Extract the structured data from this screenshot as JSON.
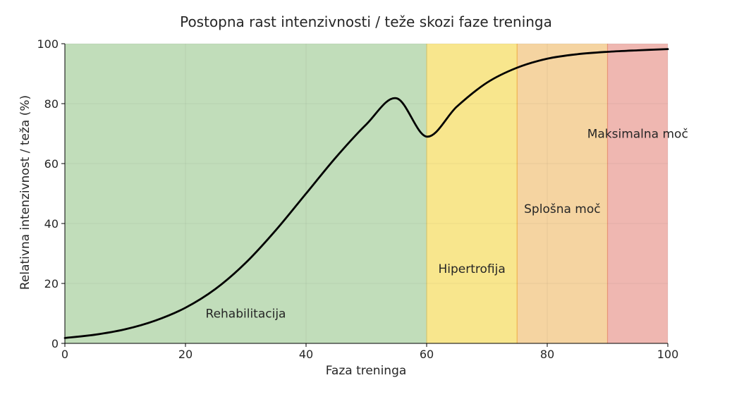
{
  "chart_data": {
    "type": "line",
    "title": "Postopna rast intenzivnosti / teže skozi faze treninga",
    "xlabel": "Faza treninga",
    "ylabel": "Relativna intenzivnost / teža (%)",
    "xlim": [
      0,
      100
    ],
    "ylim": [
      0,
      100
    ],
    "xticks": [
      0,
      20,
      40,
      60,
      80,
      100
    ],
    "yticks": [
      0,
      20,
      40,
      60,
      80,
      100
    ],
    "grid": true,
    "phases": [
      {
        "label": "Rehabilitacija",
        "x_start": 0,
        "x_end": 60,
        "color": "#c1ddba",
        "label_x": 30,
        "label_y": 10
      },
      {
        "label": "Hipertrofija",
        "x_start": 60,
        "x_end": 75,
        "color": "#f8e68d",
        "label_x": 67.5,
        "label_y": 25
      },
      {
        "label": "Splošna moč",
        "x_start": 75,
        "x_end": 90,
        "color": "#f5d4a1",
        "label_x": 82.5,
        "label_y": 45
      },
      {
        "label": "Maksimalna moč",
        "x_start": 90,
        "x_end": 100,
        "color": "#efb7b1",
        "label_x": 95,
        "label_y": 70
      }
    ],
    "series": [
      {
        "color": "#000000",
        "x": [
          0,
          5,
          10,
          15,
          20,
          25,
          30,
          35,
          40,
          45,
          50,
          55,
          60,
          65,
          70,
          75,
          80,
          85,
          90,
          95,
          100
        ],
        "y": [
          1.8,
          2.9,
          4.7,
          7.6,
          11.9,
          18.2,
          26.9,
          37.8,
          50.0,
          62.2,
          73.1,
          81.8,
          69.0,
          79.0,
          87.0,
          92.0,
          95.0,
          96.5,
          97.3,
          97.8,
          98.2
        ]
      }
    ]
  }
}
